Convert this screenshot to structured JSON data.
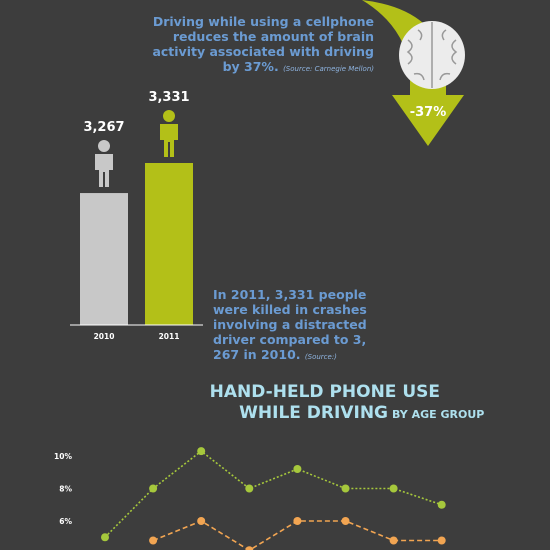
{
  "brain": {
    "text": "Driving while using a cellphone reduces the amount of brain activity associated with driving by 37%.",
    "source": "(Source: Carnegie Mellon)",
    "badge": "-37%"
  },
  "chart_data": [
    {
      "type": "bar",
      "categories": [
        "2010",
        "2011"
      ],
      "values": [
        3267,
        3331
      ],
      "value_labels": [
        "3,267",
        "3,331"
      ],
      "colors": [
        "#c8c8c8",
        "#b3c018"
      ],
      "ylim": [
        2986,
        3331
      ],
      "annotation": "In 2011, 3,331 people were killed in crashes involving a distracted driver compared to 3, 267 in 2010.",
      "annotation_source": "(Source:)"
    },
    {
      "type": "line",
      "title": [
        "HAND-HELD PHONE USE",
        "WHILE DRIVING"
      ],
      "subtitle": "BY AGE GROUP",
      "categories": [
        null,
        null,
        null,
        null,
        null,
        null,
        null,
        null
      ],
      "series": [
        {
          "color": "#a6c83c",
          "style": "dotted",
          "values": [
            5,
            8,
            10.3,
            8,
            9.2,
            8,
            8,
            7
          ]
        },
        {
          "color": "#f2a552",
          "style": "dashed",
          "values": [
            null,
            4.8,
            6,
            4.2,
            6,
            6,
            4.8,
            4.8
          ]
        }
      ],
      "ylim": [
        4,
        11
      ],
      "yticks": [
        {
          "value": 6,
          "label": "6%"
        },
        {
          "value": 8,
          "label": "8%"
        },
        {
          "value": 10,
          "label": "10%"
        }
      ]
    }
  ]
}
